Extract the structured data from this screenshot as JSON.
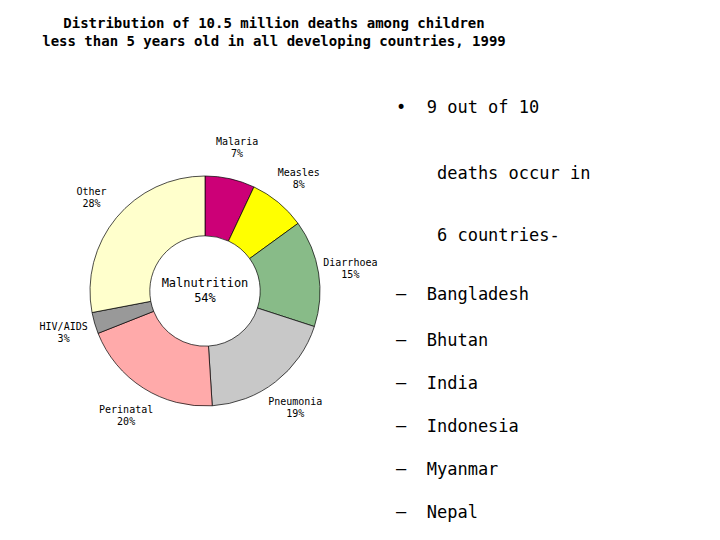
{
  "chart_data": {
    "type": "pie",
    "title": "Distribution of 10.5 million deaths among children\nless than 5 years old in all developing countries, 1999",
    "categories": [
      "Malaria",
      "Measles",
      "Diarrhoea",
      "Pneumonia",
      "Perinatal",
      "HIV/AIDS",
      "Other"
    ],
    "values": [
      7,
      8,
      15,
      19,
      20,
      3,
      28
    ],
    "value_labels": [
      "7%",
      "8%",
      "15%",
      "19%",
      "20%",
      "3%",
      "28%"
    ],
    "colors": [
      "#CC0077",
      "#FFFF00",
      "#88BB88",
      "#C8C8C8",
      "#FFAAAA",
      "#999999",
      "#FFFFCC"
    ],
    "annotations": [
      "Malnutrition\n54%",
      "•  9 out of 10",
      "    deaths occur in",
      "    6 countries-",
      "–  Bangladesh",
      "–  Bhutan",
      "–  India",
      "–  Indonesia",
      "–  Myanmar",
      "–  Nepal"
    ]
  }
}
